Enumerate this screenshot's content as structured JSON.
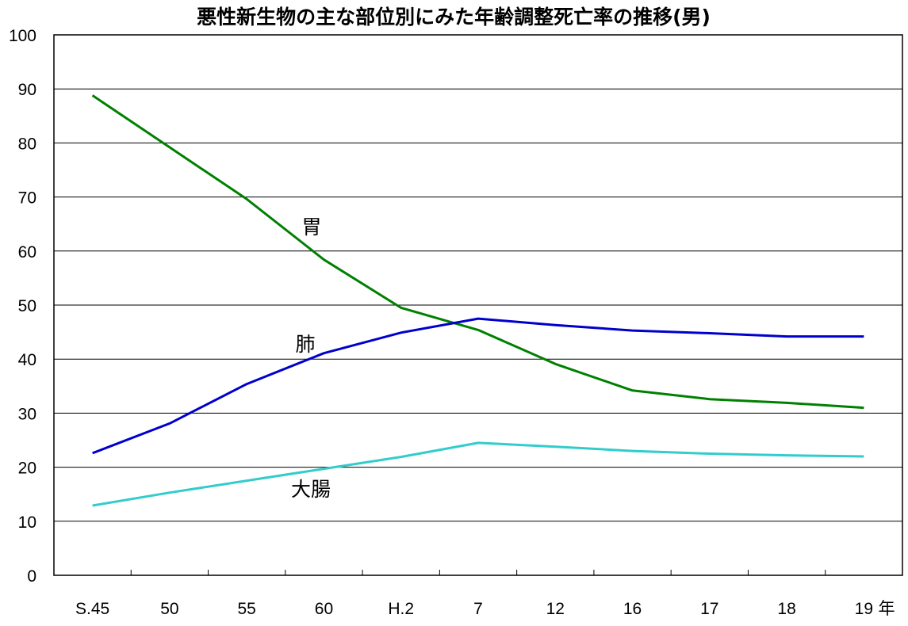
{
  "chart_data": {
    "type": "line",
    "title": "悪性新生物の主な部位別にみた年齢調整死亡率の推移(男)",
    "xlabel": "年",
    "ylabel": "",
    "categories": [
      "S.45",
      "50",
      "55",
      "60",
      "H.2",
      "7",
      "12",
      "16",
      "17",
      "18",
      "19"
    ],
    "ylim": [
      0,
      100
    ],
    "yticks": [
      0,
      10,
      20,
      30,
      40,
      50,
      60,
      70,
      80,
      90,
      100
    ],
    "grid": true,
    "series": [
      {
        "name": "胃",
        "color": "#008000",
        "values": [
          88.8,
          79.2,
          69.6,
          58.4,
          49.5,
          45.4,
          39.1,
          34.2,
          32.6,
          31.9,
          31.0
        ]
      },
      {
        "name": "肺",
        "color": "#0000cc",
        "values": [
          22.6,
          28.1,
          35.4,
          41.1,
          44.9,
          47.5,
          46.3,
          45.3,
          44.8,
          44.2,
          44.2
        ]
      },
      {
        "name": "大腸",
        "color": "#33cccc",
        "values": [
          12.9,
          15.3,
          17.5,
          19.7,
          21.9,
          24.5,
          23.8,
          23.0,
          22.5,
          22.2,
          22.0
        ]
      }
    ]
  }
}
